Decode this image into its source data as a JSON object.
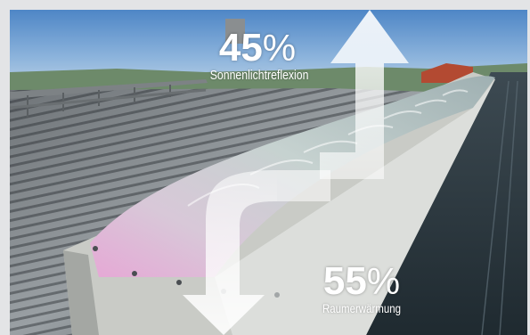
{
  "reflection": {
    "value": "45",
    "unit": "%",
    "label": "Sonnenlichtreflexion"
  },
  "warming": {
    "value": "55",
    "unit": "%",
    "label": "Raumerwärmung"
  }
}
